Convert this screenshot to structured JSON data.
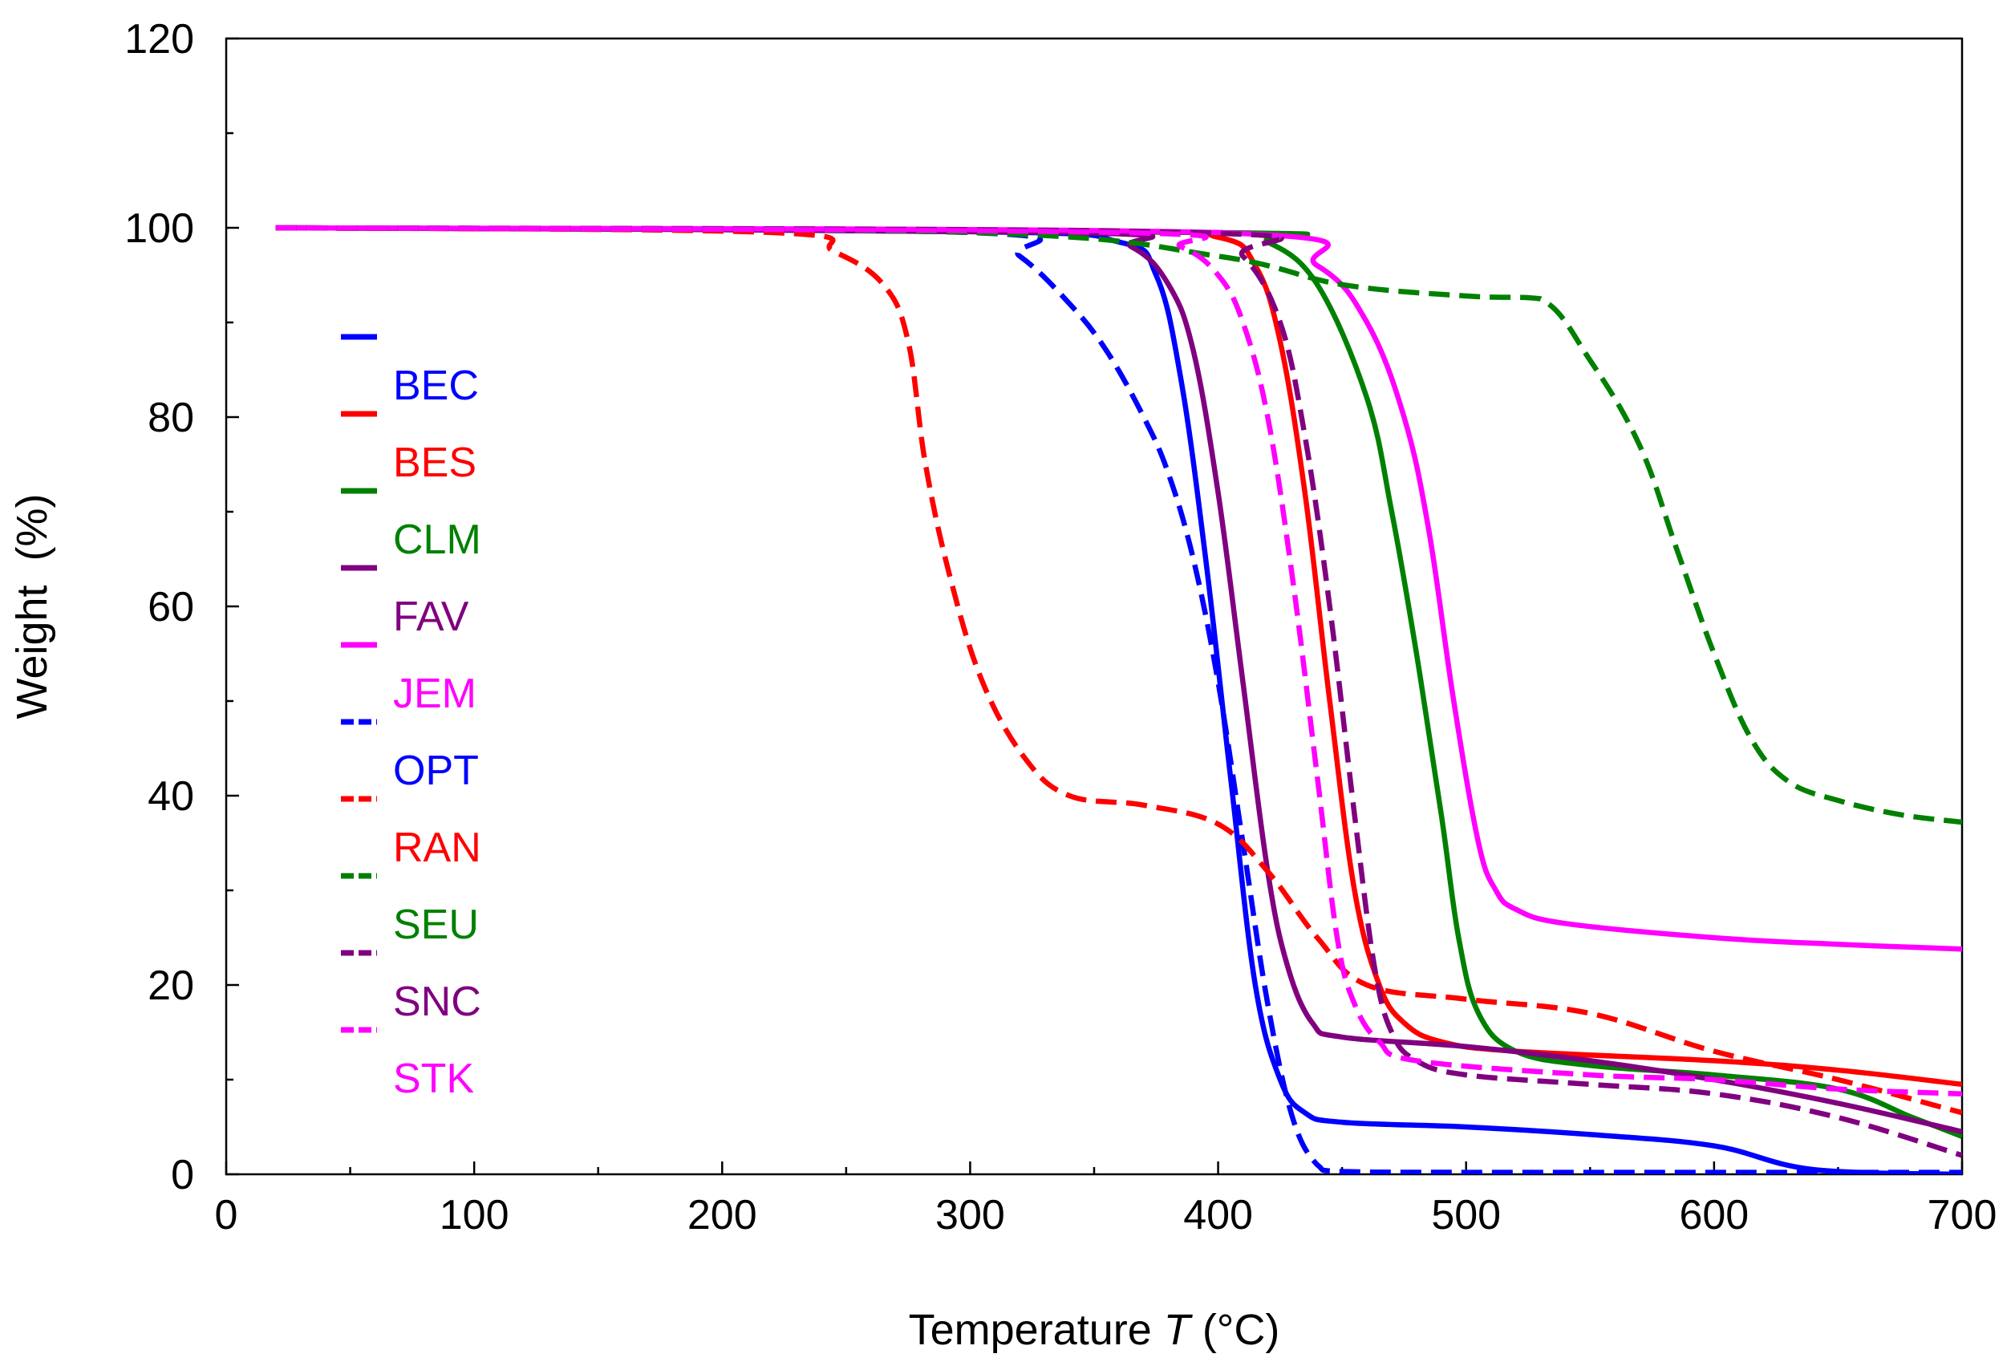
{
  "chart_data": {
    "type": "line",
    "title": "",
    "xlabel": "Temperature",
    "xlabel_symbol": "T",
    "xlabel_unit": "(°C)",
    "ylabel": "Weight  (%)",
    "xlim": [
      0,
      700
    ],
    "ylim": [
      0,
      120
    ],
    "xticks": [
      0,
      100,
      200,
      300,
      400,
      500,
      600,
      700
    ],
    "yticks": [
      0,
      20,
      40,
      60,
      80,
      100,
      120
    ],
    "grid": false,
    "legend_position": "left",
    "series": [
      {
        "name": "BEC",
        "color": "#0000ff",
        "style": "solid",
        "x": [
          20,
          300,
          360,
          375,
          385,
          395,
          405,
          415,
          425,
          435,
          450,
          500,
          550,
          600,
          640,
          700
        ],
        "y": [
          100,
          99.6,
          98.5,
          95,
          84,
          65,
          42,
          20,
          10,
          6.5,
          5.5,
          5,
          4.2,
          3,
          0.5,
          0
        ]
      },
      {
        "name": "BES",
        "color": "#ff0000",
        "style": "solid",
        "x": [
          20,
          350,
          400,
          415,
          425,
          435,
          445,
          455,
          465,
          475,
          490,
          520,
          600,
          650,
          700
        ],
        "y": [
          100,
          99.6,
          99,
          96,
          88,
          72,
          50,
          30,
          20,
          16,
          14,
          13,
          12,
          11,
          9.5
        ]
      },
      {
        "name": "CLM",
        "color": "#008000",
        "style": "solid",
        "x": [
          20,
          400,
          420,
          440,
          460,
          470,
          480,
          490,
          497,
          505,
          520,
          550,
          600,
          650,
          680,
          700
        ],
        "y": [
          100,
          99.5,
          98.5,
          94,
          82,
          70,
          55,
          38,
          25,
          17,
          13,
          11.5,
          10.5,
          9,
          6,
          4
        ]
      },
      {
        "name": "FAV",
        "color": "#800080",
        "style": "solid",
        "x": [
          20,
          340,
          365,
          380,
          390,
          400,
          410,
          420,
          428,
          438,
          450,
          500,
          550,
          600,
          650,
          700
        ],
        "y": [
          100,
          99.5,
          98,
          94,
          87,
          72,
          52,
          32,
          22,
          16,
          14.5,
          13.5,
          12,
          10,
          7.5,
          4.5
        ]
      },
      {
        "name": "JEM",
        "color": "#ff00ff",
        "style": "solid",
        "x": [
          20,
          400,
          440,
          460,
          475,
          485,
          495,
          505,
          512,
          520,
          540,
          600,
          650,
          700
        ],
        "y": [
          100,
          99.5,
          96,
          90,
          80,
          68,
          50,
          35,
          30,
          28,
          26.5,
          25,
          24.3,
          23.8
        ]
      },
      {
        "name": "OPT",
        "color": "#0000ff",
        "style": "dashed",
        "x": [
          20,
          300,
          320,
          340,
          355,
          370,
          380,
          390,
          400,
          410,
          420,
          430,
          440,
          450,
          500,
          600,
          700
        ],
        "y": [
          100,
          99.5,
          97,
          92,
          87,
          80,
          74,
          65,
          52,
          35,
          18,
          6,
          1,
          0.3,
          0.2,
          0.2,
          0.2
        ]
      },
      {
        "name": "RAN",
        "color": "#ff0000",
        "style": "dashed",
        "x": [
          20,
          220,
          245,
          265,
          275,
          282,
          292,
          305,
          322,
          340,
          370,
          400,
          420,
          440,
          460,
          500,
          550,
          600,
          650,
          700
        ],
        "y": [
          100,
          99.5,
          97.5,
          94,
          88,
          75,
          63,
          52,
          44,
          40,
          39,
          37,
          32,
          25,
          20,
          18.5,
          17,
          13,
          10,
          6.5
        ]
      },
      {
        "name": "SEU",
        "color": "#008000",
        "style": "dashed",
        "x": [
          20,
          300,
          400,
          450,
          500,
          530,
          550,
          570,
          585,
          600,
          615,
          630,
          650,
          675,
          700
        ],
        "y": [
          100,
          99.5,
          97,
          94,
          92.8,
          92.5,
          86,
          77,
          66,
          55,
          46,
          41.5,
          39.5,
          38,
          37.2
        ]
      },
      {
        "name": "SNC",
        "color": "#800080",
        "style": "dashed",
        "x": [
          20,
          390,
          410,
          425,
          435,
          445,
          455,
          463,
          470,
          480,
          500,
          550,
          600,
          650,
          700
        ],
        "y": [
          100,
          99.5,
          97,
          90,
          78,
          60,
          38,
          22,
          15,
          12,
          10.5,
          9.5,
          8.5,
          6,
          2
        ]
      },
      {
        "name": "STK",
        "color": "#ff00ff",
        "style": "dashed",
        "x": [
          20,
          360,
          385,
          400,
          410,
          420,
          430,
          440,
          448,
          455,
          465,
          480,
          550,
          600,
          650,
          700
        ],
        "y": [
          100,
          99.5,
          98,
          95,
          90,
          80,
          63,
          42,
          25,
          18,
          14,
          12,
          10.5,
          10,
          9,
          8.5
        ]
      }
    ]
  }
}
